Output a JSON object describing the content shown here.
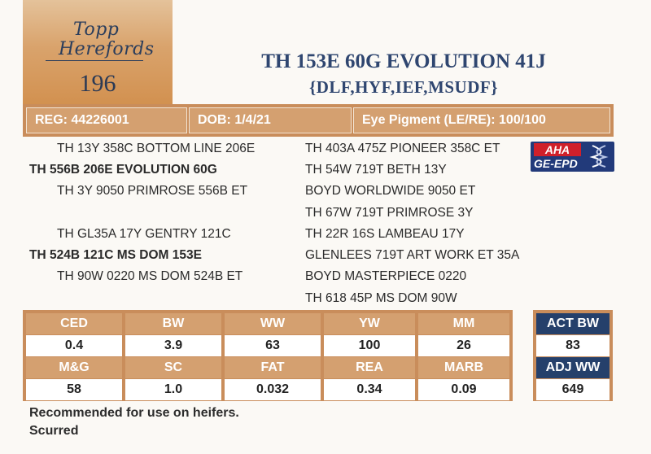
{
  "lot": {
    "logo_line1": "Topp",
    "logo_line2": "Herefords",
    "number": "196"
  },
  "animal": {
    "name": "TH 153E 60G EVOLUTION 41J",
    "genetic_codes": "{DLF,HYF,IEF,MSUDF}"
  },
  "info": {
    "reg": "REG: 44226001",
    "dob": "DOB: 1/4/21",
    "eye_pigment": "Eye Pigment (LE/RE): 100/100"
  },
  "pedigree": {
    "left": [
      {
        "text": "TH 13Y 358C BOTTOM LINE 206E",
        "bold": false
      },
      {
        "text": "TH 556B 206E EVOLUTION 60G",
        "bold": true
      },
      {
        "text": "TH 3Y 9050 PRIMROSE 556B ET",
        "bold": false
      },
      {
        "text": "TH GL35A 17Y GENTRY 121C",
        "bold": false
      },
      {
        "text": "TH 524B 121C MS DOM 153E",
        "bold": true
      },
      {
        "text": "TH 90W 0220 MS DOM 524B ET",
        "bold": false
      }
    ],
    "right": [
      "TH 403A 475Z PIONEER 358C ET",
      "TH 54W 719T BETH 13Y",
      "BOYD WORLDWIDE 9050 ET",
      "TH 67W 719T PRIMROSE 3Y",
      "TH 22R 16S LAMBEAU 17Y",
      "GLENLEES 719T ART WORK ET 35A",
      "BOYD MASTERPIECE 0220",
      "TH 618 45P MS DOM 90W"
    ]
  },
  "badge": {
    "top": "AHA",
    "bottom": "GE-EPD",
    "icon": "dna-helix-icon"
  },
  "epd": {
    "row1_headers": [
      "CED",
      "BW",
      "WW",
      "YW",
      "MM"
    ],
    "row1_values": [
      "0.4",
      "3.9",
      "63",
      "100",
      "26"
    ],
    "row2_headers": [
      "M&G",
      "SC",
      "FAT",
      "REA",
      "MARB"
    ],
    "row2_values": [
      "58",
      "1.0",
      "0.032",
      "0.34",
      "0.09"
    ]
  },
  "actuals": {
    "act_bw_label": "ACT BW",
    "act_bw_value": "83",
    "adj_ww_label": "ADJ WW",
    "adj_ww_value": "649"
  },
  "notes": {
    "line1": "Recommended for use on heifers.",
    "line2": "Scurred"
  },
  "colors": {
    "tan": "#d4a070",
    "navy": "#25406b",
    "title": "#2f4670"
  }
}
